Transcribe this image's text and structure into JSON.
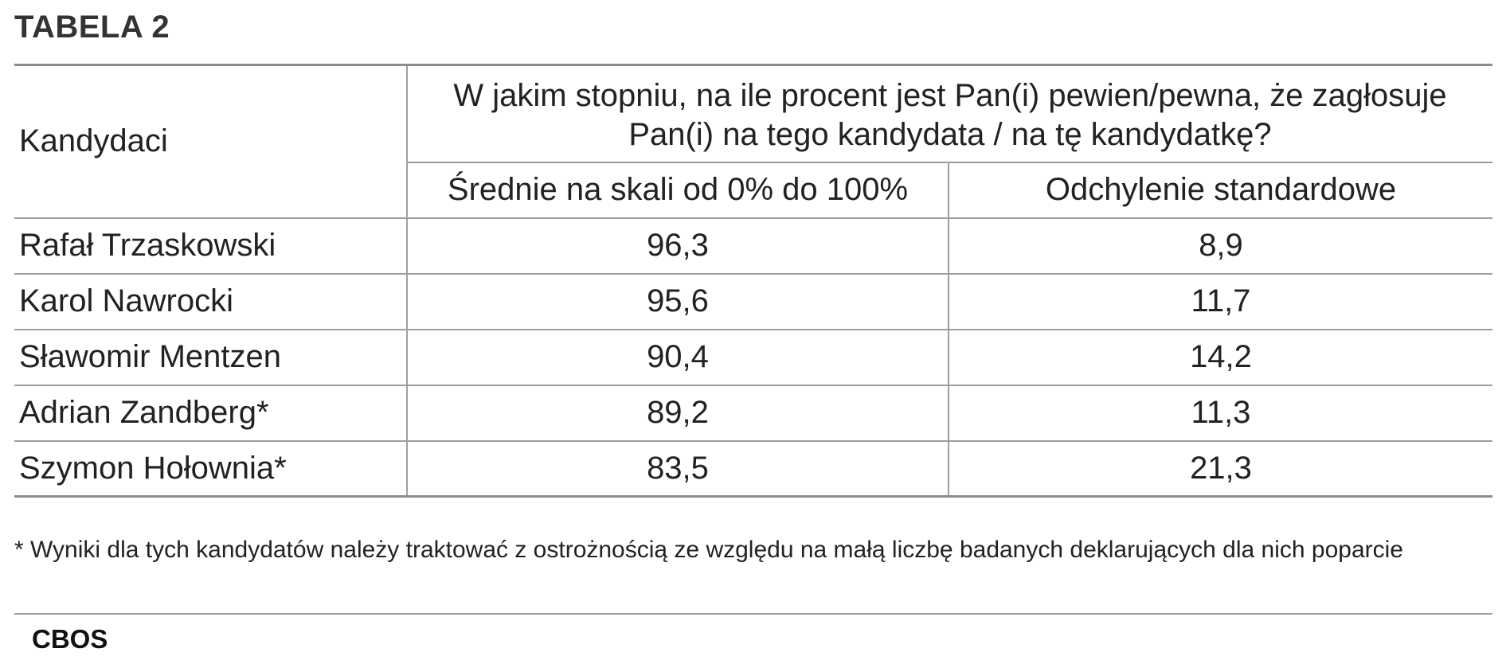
{
  "title": "TABELA 2",
  "table": {
    "col_candidates": "Kandydaci",
    "question": "W jakim stopniu, na ile procent jest Pan(i) pewien/pewna, że zagłosuje Pan(i) na tego kandydata / na tę kandydatkę?",
    "col_mean": "Średnie na skali od 0% do 100%",
    "col_sd": "Odchylenie standardowe",
    "rows": [
      {
        "name": "Rafał Trzaskowski",
        "mean": "96,3",
        "sd": "8,9"
      },
      {
        "name": "Karol Nawrocki",
        "mean": "95,6",
        "sd": "11,7"
      },
      {
        "name": "Sławomir Mentzen",
        "mean": "90,4",
        "sd": "14,2"
      },
      {
        "name": "Adrian Zandberg*",
        "mean": "89,2",
        "sd": "11,3"
      },
      {
        "name": "Szymon Hołownia*",
        "mean": "83,5",
        "sd": "21,3"
      }
    ]
  },
  "footnote": "* Wyniki dla tych kandydatów należy traktować z ostrożnością ze względu na małą liczbę badanych deklarujących dla nich poparcie",
  "source": "CBOS"
}
